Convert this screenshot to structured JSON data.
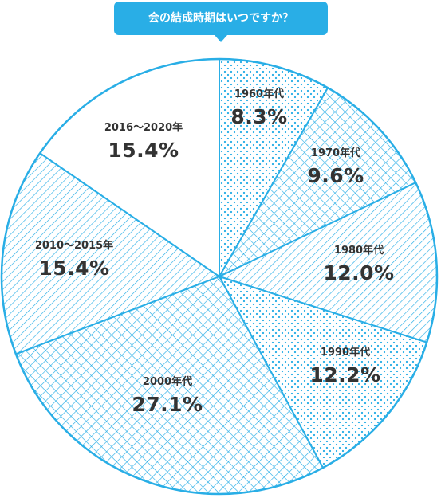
{
  "chart_data": {
    "type": "pie",
    "title": "会の結成時期はいつですか？",
    "categories": [
      "1960年代",
      "1970年代",
      "1980年代",
      "1990年代",
      "2000年代",
      "2010～2015年",
      "2016～2020年"
    ],
    "values": [
      8.3,
      9.6,
      12.0,
      12.2,
      27.1,
      15.4,
      15.4
    ],
    "value_labels": [
      "8.3%",
      "9.6%",
      "12.0%",
      "12.2%",
      "27.1%",
      "15.4%",
      "15.4%"
    ],
    "unit": "%",
    "start": "12 o'clock",
    "direction": "clockwise",
    "legend": "none",
    "patterns": [
      "dots",
      "crosshatch",
      "diagonal",
      "dots",
      "crosshatch",
      "diagonal",
      "none"
    ],
    "colors": {
      "accent": "#29aee6",
      "text": "#333333",
      "background": "#ffffff"
    }
  }
}
